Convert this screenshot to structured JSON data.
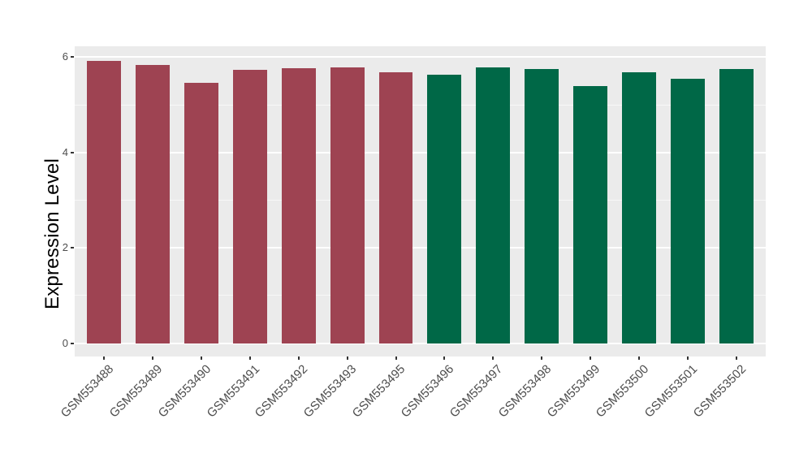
{
  "chart_data": {
    "type": "bar",
    "title": "",
    "xlabel": "",
    "ylabel": "Expression Level",
    "categories": [
      "GSM553488",
      "GSM553489",
      "GSM553490",
      "GSM553491",
      "GSM553492",
      "GSM553493",
      "GSM553495",
      "GSM553496",
      "GSM553497",
      "GSM553498",
      "GSM553499",
      "GSM553500",
      "GSM553501",
      "GSM553502"
    ],
    "values": [
      5.93,
      5.84,
      5.47,
      5.73,
      5.77,
      5.78,
      5.69,
      5.63,
      5.79,
      5.76,
      5.39,
      5.68,
      5.55,
      5.76
    ],
    "bar_groups": [
      0,
      0,
      0,
      0,
      0,
      0,
      0,
      1,
      1,
      1,
      1,
      1,
      1,
      1
    ],
    "palette": [
      "#9E4352",
      "#006847"
    ],
    "ylim": [
      -0.28,
      6.23
    ],
    "yticks_major": [
      0,
      2,
      4,
      6
    ],
    "ytick_labels": [
      "0",
      "2",
      "4",
      "6"
    ],
    "yticks_minor": [
      1,
      3,
      5
    ],
    "bar_rel_width": 0.7,
    "x_domain_pad": 0.6,
    "grid": "on",
    "legend_position": "none",
    "colors": {
      "figure_bg": "#FFFFFF",
      "panel_bg": "#EBEBEB",
      "grid_major": "#FFFFFF",
      "grid_minor": "#FFFFFF",
      "tick_text": "#4D4D4D",
      "axis_title_text": "#000000",
      "tick_mark": "#333333"
    }
  }
}
